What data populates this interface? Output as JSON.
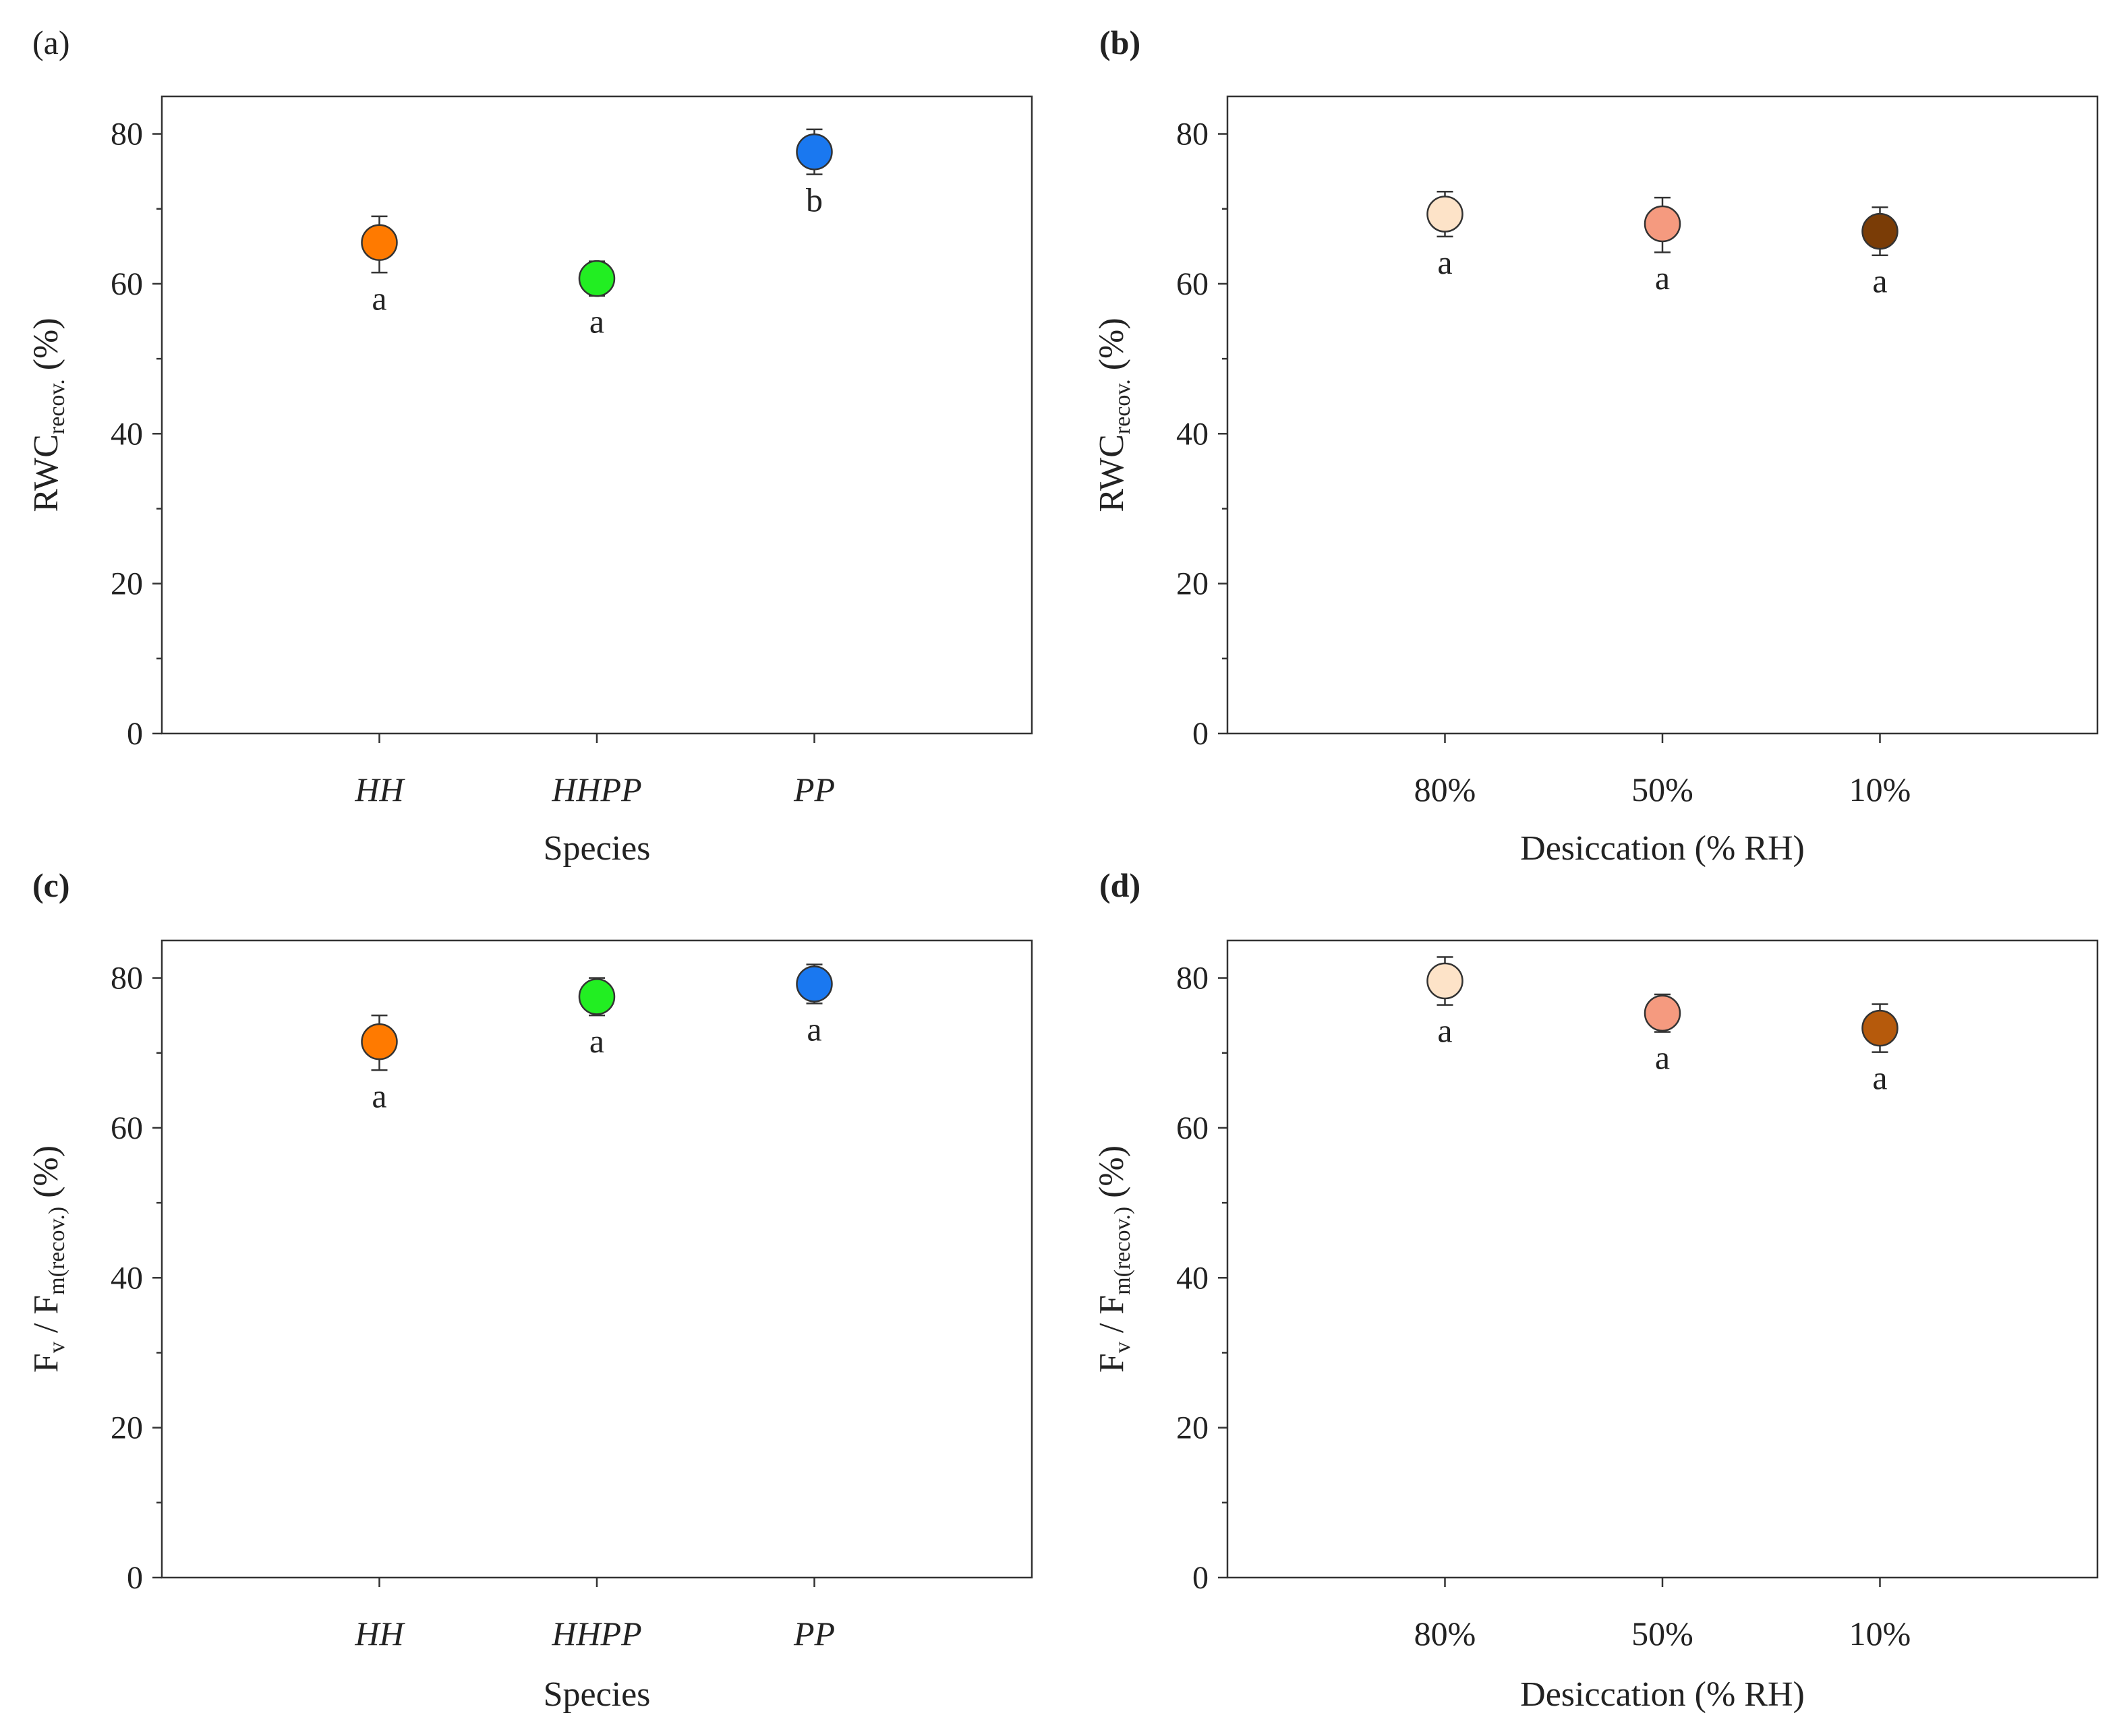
{
  "figure_title": "",
  "chart_data": [
    {
      "panel": "(a)",
      "type": "scatter",
      "categories": [
        "HH",
        "HHPP",
        "PP"
      ],
      "categories_italic": true,
      "values": [
        65.5,
        60.7,
        77.6
      ],
      "errors_up": [
        3.5,
        2.3,
        3.0
      ],
      "errors_down": [
        4.0,
        2.3,
        3.0
      ],
      "letters": [
        "a",
        "a",
        "b"
      ],
      "colors": [
        "#ff7a00",
        "#22ee22",
        "#1a78f0"
      ],
      "ylabel_main": "RWC",
      "ylabel_sub": "recov.",
      "ylabel_suffix": " (%)",
      "xlabel": "Species",
      "ylim": [
        0,
        85
      ],
      "yticks": [
        0,
        20,
        40,
        60,
        80
      ],
      "yticks_minor": [
        10,
        30,
        50,
        70
      ]
    },
    {
      "panel": "(b)",
      "type": "scatter",
      "categories": [
        "80%",
        "50%",
        "10%"
      ],
      "categories_italic": false,
      "values": [
        69.3,
        68.0,
        67.0
      ],
      "errors_up": [
        3.0,
        3.5,
        3.2
      ],
      "errors_down": [
        3.0,
        3.8,
        3.2
      ],
      "letters": [
        "a",
        "a",
        "a"
      ],
      "colors": [
        "#fde3c8",
        "#f59a7f",
        "#7a3c06"
      ],
      "ylabel_main": "RWC",
      "ylabel_sub": "recov.",
      "ylabel_suffix": " (%)",
      "xlabel": "Desiccation (% RH)",
      "ylim": [
        0,
        85
      ],
      "yticks": [
        0,
        20,
        40,
        60,
        80
      ],
      "yticks_minor": [
        10,
        30,
        50,
        70
      ]
    },
    {
      "panel": "(c)",
      "type": "scatter",
      "categories": [
        "HH",
        "HHPP",
        "PP"
      ],
      "categories_italic": true,
      "values": [
        71.5,
        77.5,
        79.2
      ],
      "errors_up": [
        3.5,
        2.5,
        2.6
      ],
      "errors_down": [
        3.8,
        2.5,
        2.6
      ],
      "letters": [
        "a",
        "a",
        "a"
      ],
      "colors": [
        "#ff7a00",
        "#22ee22",
        "#1a78f0"
      ],
      "ylabel_main": "F",
      "ylabel_sub": "v",
      "ylabel_mid": " / F",
      "ylabel_sub2": "m(recov.)",
      "ylabel_suffix": " (%)",
      "xlabel": "Species",
      "ylim": [
        0,
        85
      ],
      "yticks": [
        0,
        20,
        40,
        60,
        80
      ],
      "yticks_minor": [
        10,
        30,
        50,
        70
      ]
    },
    {
      "panel": "(d)",
      "type": "scatter",
      "categories": [
        "80%",
        "50%",
        "10%"
      ],
      "categories_italic": false,
      "values": [
        79.6,
        75.3,
        73.3
      ],
      "errors_up": [
        3.2,
        2.5,
        3.2
      ],
      "errors_down": [
        3.2,
        2.5,
        3.2
      ],
      "letters": [
        "a",
        "a",
        "a"
      ],
      "colors": [
        "#fde3c8",
        "#f59a7f",
        "#b65a0c"
      ],
      "ylabel_main": "F",
      "ylabel_sub": "v",
      "ylabel_mid": " / F",
      "ylabel_sub2": "m(recov.)",
      "ylabel_suffix": " (%)",
      "xlabel": "Desiccation (% RH)",
      "ylim": [
        0,
        85
      ],
      "yticks": [
        0,
        20,
        40,
        60,
        80
      ],
      "yticks_minor": [
        10,
        30,
        50,
        70
      ]
    }
  ]
}
